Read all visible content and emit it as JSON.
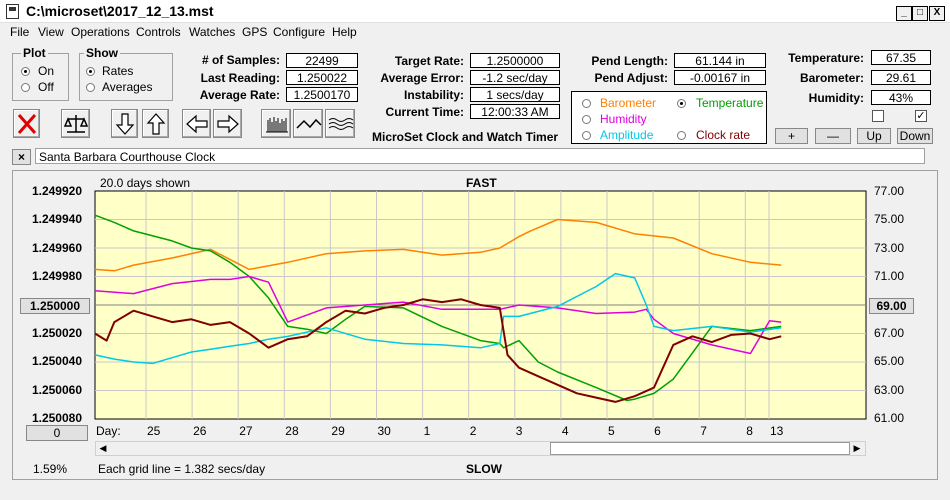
{
  "window": {
    "title": "C:\\microset\\2017_12_13.mst",
    "minimize": "_",
    "maximize": "□",
    "close": "X"
  },
  "menu": [
    "File",
    "View",
    "Operations",
    "Controls",
    "Watches",
    "GPS",
    "Configure",
    "Help"
  ],
  "plot": {
    "title": "Plot",
    "options": [
      "On",
      "Off"
    ],
    "selected": "On"
  },
  "show": {
    "title": "Show",
    "options": [
      "Rates",
      "Averages"
    ],
    "selected": "Rates"
  },
  "stats": {
    "samples_label": "# of Samples:",
    "samples": "22499",
    "last_reading_label": "Last Reading:",
    "last_reading": "1.250022",
    "average_rate_label": "Average Rate:",
    "average_rate": "1.2500170"
  },
  "rates": {
    "target_rate_label": "Target Rate:",
    "target_rate": "1.2500000",
    "average_error_label": "Average Error:",
    "average_error": "-1.2 sec/day",
    "instability_label": "Instability:",
    "instability": "1 secs/day",
    "current_time_label": "Current Time:",
    "current_time": "12:00:33 AM"
  },
  "pendulum": {
    "length_label": "Pend Length:",
    "length": "61.144 in",
    "adjust_label": "Pend Adjust:",
    "adjust": "-0.00167 in"
  },
  "environment": {
    "temperature_label": "Temperature:",
    "temperature": "67.35",
    "barometer_label": "Barometer:",
    "barometer": "29.61",
    "humidity_label": "Humidity:",
    "humidity": "43%"
  },
  "checkboxes": [
    false,
    true
  ],
  "env_buttons": [
    "+",
    "—",
    "Up",
    "Down"
  ],
  "sensor_select": {
    "options": [
      {
        "label": "Barometer",
        "color": "#ff8000"
      },
      {
        "label": "Temperature",
        "color": "#00a000"
      },
      {
        "label": "Humidity",
        "color": "#e000e0"
      },
      {
        "label": "Amplitude",
        "color": "#00c8e8"
      },
      {
        "label": "Clock rate",
        "color": "#800000"
      }
    ],
    "selected": "Temperature"
  },
  "app_name": "MicroSet Clock and Watch Timer",
  "clock_name": "Santa Barbara Courthouse Clock",
  "close_clock": "×",
  "chart": {
    "top_label": "FAST",
    "bottom_label": "SLOW",
    "days_shown": "20.0 days shown",
    "grid_note": "Each grid line = 1.382 secs/day",
    "percent": "1.59%",
    "center_left_button": "1.250000",
    "center_right_button": "69.00",
    "zero_button": "0",
    "day_label": "Day:"
  },
  "chart_data": {
    "type": "line",
    "title": "",
    "left_axis": {
      "labels": [
        "1.249920",
        "1.249940",
        "1.249960",
        "1.249980",
        "1.250000",
        "1.250020",
        "1.250040",
        "1.250060",
        "1.250080"
      ],
      "range": [
        1.24992,
        1.25008
      ],
      "inverted": true
    },
    "right_axis": {
      "labels": [
        "77.00",
        "75.00",
        "73.00",
        "71.00",
        "69.00",
        "67.00",
        "65.00",
        "63.00",
        "61.00"
      ],
      "range": [
        61,
        77
      ]
    },
    "x_axis": {
      "labels": [
        "25",
        "26",
        "27",
        "28",
        "29",
        "30",
        "1",
        "2",
        "3",
        "4",
        "5",
        "6",
        "7",
        "8",
        "13"
      ],
      "range": [
        0,
        20
      ]
    },
    "grid": true,
    "background": "#ffffc8",
    "series": [
      {
        "name": "Barometer",
        "color": "#ff8000",
        "axis": "right",
        "x": [
          0,
          0.5,
          1,
          2,
          3,
          4,
          5,
          6,
          7,
          8,
          9,
          10,
          10.5,
          11,
          11.3,
          12,
          13,
          14,
          15,
          16,
          17,
          17.8
        ],
        "y": [
          71.5,
          71.4,
          71.8,
          72.3,
          72.9,
          71.5,
          72.0,
          72.6,
          72.8,
          72.9,
          72.5,
          72.7,
          73.0,
          73.8,
          74.2,
          75.0,
          74.8,
          74.0,
          73.7,
          72.6,
          72.0,
          71.8
        ]
      },
      {
        "name": "Temperature",
        "color": "#00a000",
        "axis": "right",
        "x": [
          0,
          0.5,
          1,
          2,
          2.5,
          3,
          3.5,
          4,
          4.5,
          5,
          5.5,
          6,
          6.5,
          7,
          8,
          9,
          10,
          10.5,
          10.6,
          11,
          11.5,
          12,
          13,
          13.8,
          14,
          14.5,
          15,
          16,
          17,
          17.8
        ],
        "y": [
          75.3,
          74.8,
          74.2,
          73.5,
          73.0,
          72.8,
          72.0,
          71.0,
          69.5,
          67.5,
          67.3,
          67.0,
          68.0,
          68.9,
          68.8,
          67.5,
          66.5,
          66.3,
          66.0,
          66.5,
          65.0,
          64.3,
          63.2,
          62.3,
          62.4,
          62.8,
          63.8,
          67.5,
          67.2,
          67.5
        ]
      },
      {
        "name": "Humidity",
        "color": "#e000e0",
        "axis": "right",
        "x": [
          0,
          1,
          2,
          3,
          3.5,
          4,
          4.5,
          5,
          6,
          7,
          8,
          9,
          10,
          10.5,
          11,
          12,
          13,
          14,
          14.3,
          14.5,
          15,
          16,
          17,
          17.5,
          17.8
        ],
        "y": [
          70.0,
          69.8,
          70.5,
          70.8,
          70.8,
          71.0,
          70.6,
          67.8,
          68.8,
          69.0,
          69.2,
          68.7,
          68.7,
          68.7,
          69.0,
          68.8,
          68.4,
          68.5,
          68.7,
          68.0,
          67.0,
          66.2,
          65.6,
          67.9,
          67.8
        ]
      },
      {
        "name": "Amplitude",
        "color": "#00c8e8",
        "axis": "right",
        "x": [
          0,
          0.5,
          1,
          1.5,
          2,
          2.5,
          3,
          3.5,
          4,
          4.5,
          5,
          6,
          7,
          8,
          9,
          10,
          10.5,
          10.6,
          11,
          12,
          13,
          13.5,
          14,
          14.3,
          14.5,
          15,
          16,
          17,
          17.8
        ],
        "y": [
          65.5,
          65.2,
          65.0,
          64.9,
          65.3,
          65.7,
          65.9,
          66.1,
          66.3,
          66.6,
          66.8,
          67.4,
          66.6,
          66.3,
          66.2,
          66.0,
          66.3,
          68.2,
          68.2,
          68.9,
          70.3,
          71.2,
          70.9,
          69.0,
          67.5,
          67.2,
          67.5,
          67.1,
          67.4
        ]
      },
      {
        "name": "Clock rate",
        "color": "#800000",
        "axis": "left",
        "x": [
          0,
          0.3,
          0.5,
          1,
          1.5,
          2,
          2.5,
          3,
          3.5,
          4,
          4.5,
          5,
          5.5,
          6,
          6.5,
          7,
          7.5,
          8,
          8.5,
          9,
          9.5,
          10,
          10.5,
          10.7,
          11,
          11.5,
          12,
          12.5,
          13,
          13.5,
          14,
          14.5,
          15,
          15.5,
          16,
          16.5,
          17,
          17.5,
          17.8
        ],
        "y": [
          1.25002,
          1.250025,
          1.250012,
          1.250004,
          1.250008,
          1.250012,
          1.25001,
          1.250014,
          1.250012,
          1.25002,
          1.25003,
          1.250024,
          1.250022,
          1.250012,
          1.250004,
          1.250006,
          1.250002,
          1.25,
          1.249996,
          1.249998,
          1.249996,
          1.25,
          1.250002,
          1.250035,
          1.250044,
          1.25005,
          1.250056,
          1.250062,
          1.250065,
          1.250068,
          1.250064,
          1.250058,
          1.250028,
          1.250022,
          1.250026,
          1.250021,
          1.25002,
          1.250024,
          1.250022
        ]
      }
    ]
  }
}
